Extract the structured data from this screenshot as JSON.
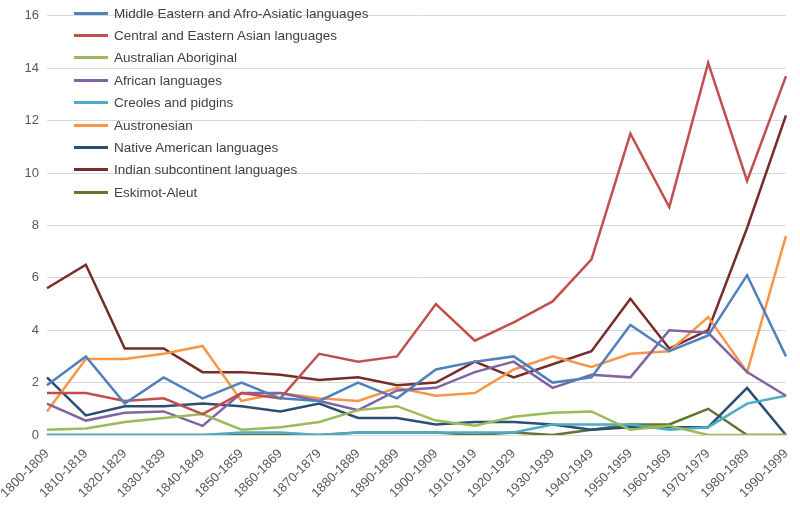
{
  "chart_data": {
    "type": "line",
    "categories": [
      "1800-1809",
      "1810-1819",
      "1820-1829",
      "1830-1839",
      "1840-1849",
      "1850-1859",
      "1860-1869",
      "1870-1879",
      "1880-1889",
      "1890-1899",
      "1900-1909",
      "1910-1919",
      "1920-1929",
      "1930-1939",
      "1940-1949",
      "1950-1959",
      "1960-1969",
      "1970-1979",
      "1980-1989",
      "1990-1999"
    ],
    "series": [
      {
        "name": "Middle Eastern and Afro-Asiatic languages",
        "color": "#4f81bd",
        "values": [
          1.9,
          3.0,
          1.2,
          2.2,
          1.4,
          2.0,
          1.4,
          1.3,
          2.0,
          1.4,
          2.5,
          2.8,
          3.0,
          2.0,
          2.2,
          4.2,
          3.2,
          3.8,
          6.1,
          3.0
        ]
      },
      {
        "name": "Central and Eastern Asian languages",
        "color": "#c0504d",
        "values": [
          1.6,
          1.6,
          1.3,
          1.4,
          0.8,
          1.6,
          1.4,
          3.1,
          2.8,
          3.0,
          5.0,
          3.6,
          4.3,
          5.1,
          6.7,
          11.5,
          8.7,
          14.2,
          9.7,
          13.7
        ]
      },
      {
        "name": "Australian Aboriginal",
        "color": "#9bbb59",
        "values": [
          0.2,
          0.25,
          0.5,
          0.65,
          0.8,
          0.2,
          0.3,
          0.5,
          0.95,
          1.1,
          0.55,
          0.35,
          0.7,
          0.85,
          0.9,
          0.2,
          0.35,
          0,
          0,
          0
        ]
      },
      {
        "name": "African languages",
        "color": "#8064a2",
        "values": [
          1.2,
          0.55,
          0.85,
          0.9,
          0.35,
          1.6,
          1.6,
          1.3,
          0.95,
          1.7,
          1.8,
          2.4,
          2.8,
          1.8,
          2.3,
          2.2,
          4.0,
          3.9,
          2.4,
          1.5
        ]
      },
      {
        "name": "Creoles and pidgins",
        "color": "#4bacc6",
        "values": [
          0,
          0,
          0,
          0,
          0,
          0.1,
          0.1,
          0,
          0.1,
          0.1,
          0.1,
          0.1,
          0.1,
          0.4,
          0.4,
          0.4,
          0.2,
          0.3,
          1.2,
          1.5
        ]
      },
      {
        "name": "Austronesian",
        "color": "#f79646",
        "values": [
          0.9,
          2.9,
          2.9,
          3.1,
          3.4,
          1.3,
          1.6,
          1.4,
          1.3,
          1.8,
          1.5,
          1.6,
          2.5,
          3.0,
          2.6,
          3.1,
          3.2,
          4.5,
          2.4,
          7.6
        ]
      },
      {
        "name": "Native American languages",
        "color": "#2c4d75",
        "values": [
          2.2,
          0.75,
          1.1,
          1.1,
          1.2,
          1.1,
          0.9,
          1.2,
          0.65,
          0.65,
          0.4,
          0.5,
          0.5,
          0.4,
          0.2,
          0.3,
          0.3,
          0.3,
          1.8,
          0
        ]
      },
      {
        "name": "Indian subcontinent languages",
        "color": "#772c2a",
        "values": [
          5.6,
          6.5,
          3.3,
          3.3,
          2.4,
          2.4,
          2.3,
          2.1,
          2.2,
          1.9,
          2.0,
          2.8,
          2.2,
          2.7,
          3.2,
          5.2,
          3.3,
          4.0,
          7.9,
          12.2
        ]
      },
      {
        "name": "Eskimot-Aleut",
        "color": "#5f7530",
        "values": [
          0,
          0,
          0,
          0,
          0,
          0,
          0,
          0,
          0.1,
          0.1,
          0.1,
          0,
          0.1,
          0,
          0.2,
          0.4,
          0.4,
          1.0,
          0,
          0
        ]
      }
    ],
    "ylim": [
      0,
      16
    ],
    "yticks": [
      0,
      2,
      4,
      6,
      8,
      10,
      12,
      14,
      16
    ],
    "grid": true,
    "legend": "upper left"
  }
}
